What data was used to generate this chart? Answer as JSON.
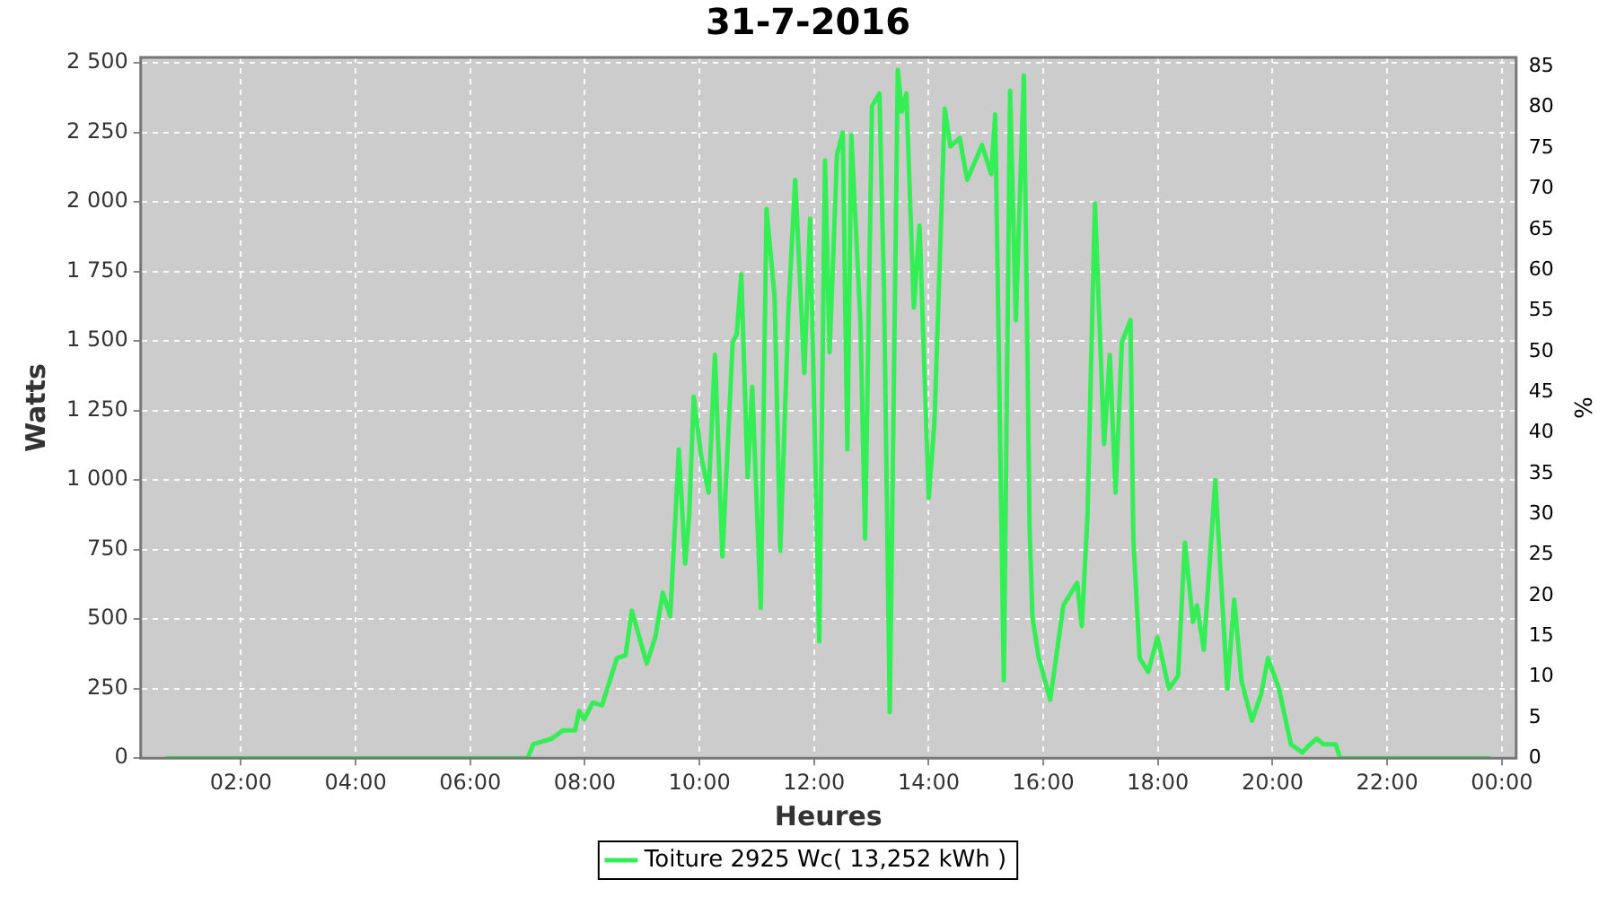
{
  "chart_data": {
    "type": "line",
    "title": "31-7-2016",
    "xlabel": "Heures",
    "ylabel": "Watts",
    "y2label": "%",
    "x": [
      0.68,
      2,
      4,
      6,
      7.0,
      7.1,
      7.42,
      7.62,
      7.83,
      7.9,
      7.99,
      8.14,
      8.3,
      8.56,
      8.71,
      8.82,
      9.08,
      9.23,
      9.36,
      9.49,
      9.64,
      9.75,
      9.82,
      9.9,
      10.03,
      10.16,
      10.27,
      10.4,
      10.58,
      10.65,
      10.73,
      10.84,
      10.92,
      11.07,
      11.17,
      11.31,
      11.41,
      11.55,
      11.67,
      11.83,
      11.93,
      12.09,
      12.19,
      12.27,
      12.4,
      12.5,
      12.58,
      12.65,
      12.81,
      12.89,
      13.01,
      13.14,
      13.22,
      13.32,
      13.46,
      13.53,
      13.61,
      13.74,
      13.84,
      14.0,
      14.1,
      14.28,
      14.38,
      14.54,
      14.67,
      14.93,
      15.09,
      15.16,
      15.31,
      15.42,
      15.52,
      15.66,
      15.76,
      15.81,
      15.92,
      16.12,
      16.35,
      16.59,
      16.67,
      16.77,
      16.9,
      17.06,
      17.16,
      17.26,
      17.37,
      17.52,
      17.57,
      17.68,
      17.83,
      17.99,
      18.19,
      18.35,
      18.47,
      18.61,
      18.68,
      18.8,
      19.0,
      19.21,
      19.33,
      19.46,
      19.64,
      19.8,
      19.92,
      20.11,
      20.32,
      20.52,
      20.63,
      20.77,
      20.89,
      21.1,
      21.18,
      22,
      23,
      23.8
    ],
    "series": [
      {
        "name": "Toiture 2925 Wc( 13,252 kWh )",
        "color": "#33ee55",
        "values": [
          0,
          0,
          0,
          0,
          0,
          50,
          70,
          100,
          100,
          170,
          140,
          200,
          190,
          360,
          370,
          530,
          340,
          435,
          595,
          510,
          1110,
          700,
          870,
          1300,
          1085,
          955,
          1450,
          725,
          1495,
          1525,
          1740,
          1010,
          1335,
          540,
          1975,
          1660,
          745,
          1600,
          2080,
          1385,
          1940,
          420,
          2150,
          1460,
          2170,
          2250,
          1110,
          2240,
          1560,
          790,
          2345,
          2390,
          1685,
          165,
          2475,
          2325,
          2390,
          1620,
          1915,
          935,
          1210,
          2335,
          2200,
          2230,
          2080,
          2205,
          2100,
          2315,
          280,
          2400,
          1575,
          2455,
          830,
          505,
          360,
          210,
          550,
          630,
          475,
          870,
          1995,
          1130,
          1450,
          955,
          1495,
          1575,
          790,
          360,
          310,
          435,
          250,
          295,
          775,
          490,
          550,
          390,
          1000,
          250,
          570,
          275,
          135,
          230,
          360,
          250,
          50,
          20,
          45,
          70,
          50,
          50,
          0,
          0,
          0,
          0
        ]
      }
    ],
    "xlim": [
      0.25,
      24.25
    ],
    "xticks": [
      {
        "value": 2,
        "label": "02:00"
      },
      {
        "value": 4,
        "label": "04:00"
      },
      {
        "value": 6,
        "label": "06:00"
      },
      {
        "value": 8,
        "label": "08:00"
      },
      {
        "value": 10,
        "label": "10:00"
      },
      {
        "value": 12,
        "label": "12:00"
      },
      {
        "value": 14,
        "label": "14:00"
      },
      {
        "value": 16,
        "label": "16:00"
      },
      {
        "value": 18,
        "label": "18:00"
      },
      {
        "value": 20,
        "label": "20:00"
      },
      {
        "value": 22,
        "label": "22:00"
      },
      {
        "value": 24,
        "label": "00:00"
      }
    ],
    "ylim": [
      0,
      2520
    ],
    "yticks": [
      0,
      250,
      500,
      750,
      {
        "value": 1000,
        "label": "1 000"
      },
      {
        "value": 1250,
        "label": "1 250"
      },
      {
        "value": 1500,
        "label": "1 500"
      },
      {
        "value": 1750,
        "label": "1 750"
      },
      {
        "value": 2000,
        "label": "2 000"
      },
      {
        "value": 2250,
        "label": "2 250"
      },
      {
        "value": 2500,
        "label": "2 500"
      }
    ],
    "y2lim": [
      0,
      86.15
    ],
    "y2ticks": [
      0,
      5,
      10,
      15,
      20,
      25,
      30,
      35,
      40,
      45,
      50,
      55,
      60,
      65,
      70,
      75,
      80,
      85
    ],
    "grid": true,
    "legend": "bottom",
    "marker": "none",
    "line_style": "solid"
  }
}
